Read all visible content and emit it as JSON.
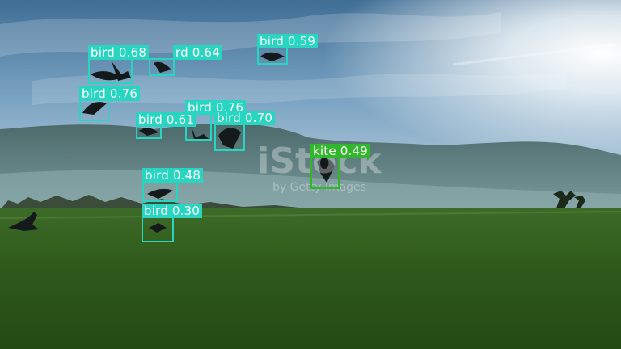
{
  "watermark": {
    "logo": "iStock",
    "credit": "by Getty Images"
  },
  "colors": {
    "bird_box": "#27d5c0",
    "kite_box": "#32b62c",
    "label_text": "#ffffff"
  },
  "detections": [
    {
      "label": "bird 0.68"
    },
    {
      "label": "rd 0.64"
    },
    {
      "label": "bird 0.59"
    },
    {
      "label": "bird 0.76"
    },
    {
      "label": "bird 0.76"
    },
    {
      "label": "bird 0.61"
    },
    {
      "label": "bird 0.70"
    },
    {
      "label": "kite 0.49"
    },
    {
      "label": "bird 0.48"
    },
    {
      "label": "bird 0.30"
    }
  ]
}
